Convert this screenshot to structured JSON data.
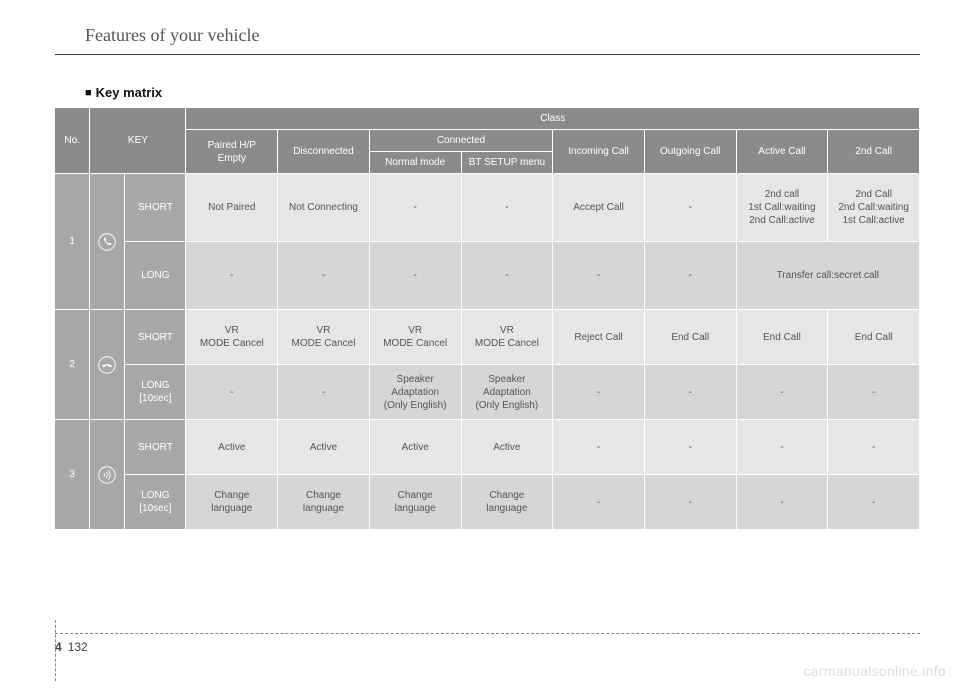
{
  "header": {
    "title": "Features of your vehicle"
  },
  "subheading": {
    "marker": "■",
    "text": "Key matrix"
  },
  "table": {
    "colwidths": [
      "4%",
      "4%",
      "7%",
      "10.5%",
      "10.5%",
      "10.5%",
      "10.5%",
      "10.5%",
      "10.5%",
      "10.5%",
      "10.5%"
    ],
    "head": {
      "no": "No.",
      "key": "KEY",
      "class": "Class",
      "paired": "Paired H/P\nEmpty",
      "disconnected": "Disconnected",
      "connected": "Connected",
      "normal": "Normal mode",
      "btsetup": "BT SETUP menu",
      "incoming": "Incoming Call",
      "outgoing": "Outgoing Call",
      "active": "Active Call",
      "second": "2nd Call"
    },
    "rows": [
      {
        "no": "1",
        "icon": "phone",
        "sub": [
          {
            "label": "SHORT",
            "cells": [
              "Not Paired",
              "Not Connecting",
              "-",
              "-",
              "Accept Call",
              "-",
              "2nd call\n1st Call:waiting\n2nd Call:active",
              "2nd Call\n2nd Call:waiting\n1st Call:active"
            ],
            "cellsColspan": [
              1,
              1,
              1,
              1,
              1,
              1,
              1,
              1
            ]
          },
          {
            "label": "LONG",
            "cells": [
              "-",
              "-",
              "-",
              "-",
              "-",
              "-",
              "Transfer call:secret call"
            ],
            "cellsColspan": [
              1,
              1,
              1,
              1,
              1,
              1,
              2
            ]
          }
        ]
      },
      {
        "no": "2",
        "icon": "hangup",
        "sub": [
          {
            "label": "SHORT",
            "cells": [
              "VR\nMODE Cancel",
              "VR\nMODE Cancel",
              "VR\nMODE Cancel",
              "VR\nMODE Cancel",
              "Reject Call",
              "End Call",
              "End Call",
              "End Call"
            ],
            "cellsColspan": [
              1,
              1,
              1,
              1,
              1,
              1,
              1,
              1
            ]
          },
          {
            "label": "LONG\n[10sec]",
            "cells": [
              "-",
              "-",
              "Speaker\nAdaptation\n(Only English)",
              "Speaker\nAdaptation\n(Only English)",
              "-",
              "-",
              "-",
              "-"
            ],
            "cellsColspan": [
              1,
              1,
              1,
              1,
              1,
              1,
              1,
              1
            ]
          }
        ]
      },
      {
        "no": "3",
        "icon": "voice",
        "sub": [
          {
            "label": "SHORT",
            "cells": [
              "Active",
              "Active",
              "Active",
              "Active",
              "-",
              "-",
              "-",
              "-"
            ],
            "cellsColspan": [
              1,
              1,
              1,
              1,
              1,
              1,
              1,
              1
            ]
          },
          {
            "label": "LONG\n[10sec]",
            "cells": [
              "Change\nlanguage",
              "Change\nlanguage",
              "Change\nlanguage",
              "Change\nlanguage",
              "-",
              "-",
              "-",
              "-"
            ],
            "cellsColspan": [
              1,
              1,
              1,
              1,
              1,
              1,
              1,
              1
            ]
          }
        ]
      }
    ]
  },
  "footer": {
    "chapter": "4",
    "page": "132"
  },
  "watermark": "carmanualsonline.info",
  "colors": {
    "hdr_bg": "#8b8b8b",
    "rowlabel_bg": "#a8a8a8",
    "cell_light": "#e6e6e6",
    "cell_dark": "#d6d6d6"
  }
}
